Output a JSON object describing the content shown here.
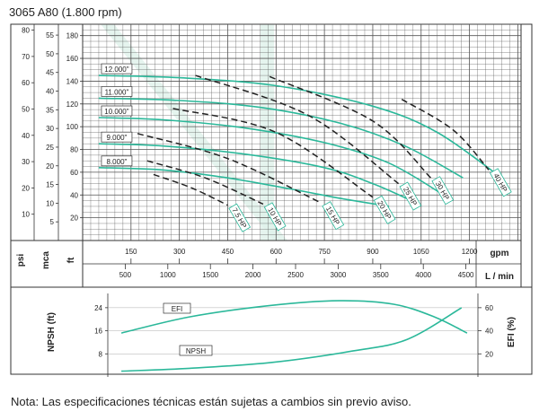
{
  "title": "3065 A80 (1.800 rpm)",
  "note": "Nota: Las especificaciones técnicas están sujetas a cambios sin previo aviso.",
  "colors": {
    "curve": "#2bb89a",
    "dash": "#222222",
    "frame": "#333333",
    "watermark": "#dff1ea"
  },
  "chart_data": [
    {
      "type": "line",
      "title": "",
      "x_axes": [
        {
          "unit": "gpm",
          "range": [
            0,
            1360
          ],
          "ticks": [
            150,
            300,
            450,
            600,
            750,
            900,
            1050,
            1200
          ]
        },
        {
          "unit": "L / min",
          "ticks": [
            500,
            1000,
            1500,
            2000,
            2500,
            3000,
            3500,
            4000,
            4500
          ]
        }
      ],
      "y_axes": [
        {
          "label": "psi",
          "ticks": [
            10,
            20,
            30,
            40,
            50,
            60,
            70,
            80
          ]
        },
        {
          "label": "mca",
          "ticks": [
            5,
            10,
            15,
            20,
            25,
            30,
            35,
            40,
            45,
            50,
            55
          ]
        },
        {
          "label": "ft",
          "range": [
            0,
            190
          ],
          "ticks": [
            20,
            40,
            60,
            80,
            100,
            120,
            140,
            160,
            180
          ]
        }
      ],
      "impeller_curves": [
        {
          "label": "12.000\"",
          "points": [
            [
              50,
              145
            ],
            [
              300,
              143
            ],
            [
              600,
              136
            ],
            [
              900,
              118
            ],
            [
              1100,
              95
            ],
            [
              1300,
              55
            ]
          ]
        },
        {
          "label": "11.000\"",
          "points": [
            [
              50,
              125
            ],
            [
              300,
              123
            ],
            [
              550,
              117
            ],
            [
              800,
              103
            ],
            [
              1000,
              83
            ],
            [
              1180,
              55
            ]
          ]
        },
        {
          "label": "10.000\"",
          "points": [
            [
              50,
              108
            ],
            [
              250,
              106
            ],
            [
              500,
              99
            ],
            [
              750,
              86
            ],
            [
              950,
              68
            ],
            [
              1120,
              40
            ]
          ]
        },
        {
          "label": "9.000\"",
          "points": [
            [
              50,
              85
            ],
            [
              250,
              83
            ],
            [
              500,
              76
            ],
            [
              750,
              64
            ],
            [
              900,
              50
            ],
            [
              1020,
              35
            ]
          ]
        },
        {
          "label": "8.000\"",
          "points": [
            [
              50,
              64
            ],
            [
              250,
              62
            ],
            [
              450,
              55
            ],
            [
              650,
              45
            ],
            [
              800,
              37
            ],
            [
              950,
              30
            ]
          ]
        }
      ],
      "hp_lines": [
        {
          "label": "7.5 HP",
          "points": [
            [
              220,
              58
            ],
            [
              340,
              46
            ],
            [
              450,
              31
            ]
          ]
        },
        {
          "label": "10 HP",
          "points": [
            [
              200,
              70
            ],
            [
              380,
              55
            ],
            [
              560,
              32
            ]
          ]
        },
        {
          "label": "15 HP",
          "points": [
            [
              170,
              94
            ],
            [
              450,
              72
            ],
            [
              740,
              33
            ]
          ]
        },
        {
          "label": "20 HP",
          "points": [
            [
              280,
              116
            ],
            [
              600,
              95
            ],
            [
              900,
              38
            ]
          ]
        },
        {
          "label": "25 HP",
          "points": [
            [
              350,
              145
            ],
            [
              700,
              110
            ],
            [
              980,
              50
            ]
          ]
        },
        {
          "label": "30 HP",
          "points": [
            [
              580,
              144
            ],
            [
              900,
              105
            ],
            [
              1080,
              55
            ]
          ]
        },
        {
          "label": "40 HP",
          "points": [
            [
              990,
              124
            ],
            [
              1150,
              97
            ],
            [
              1260,
              62
            ]
          ]
        }
      ]
    },
    {
      "type": "line",
      "title": "",
      "left_axis": {
        "label": "NPSH (ft)",
        "ticks": [
          8,
          16,
          24
        ],
        "range": [
          0,
          28
        ]
      },
      "right_axis": {
        "label": "EFI (%)",
        "ticks": [
          20,
          40,
          60
        ],
        "range": [
          0,
          70
        ]
      },
      "series": [
        {
          "name": "EFI",
          "axis": "right",
          "points": [
            [
              50,
              38
            ],
            [
              300,
              52
            ],
            [
              600,
              62
            ],
            [
              850,
              66
            ],
            [
              1050,
              63
            ],
            [
              1200,
              52
            ],
            [
              1320,
              38
            ]
          ]
        },
        {
          "name": "NPSH",
          "axis": "left",
          "points": [
            [
              50,
              2
            ],
            [
              300,
              3
            ],
            [
              600,
              5
            ],
            [
              900,
              9
            ],
            [
              1100,
              13
            ],
            [
              1300,
              24
            ]
          ]
        }
      ]
    }
  ]
}
